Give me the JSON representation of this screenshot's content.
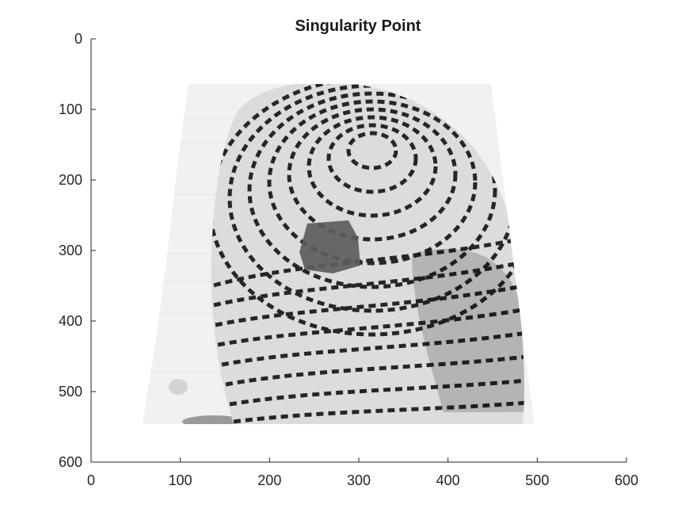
{
  "title": "Singularity Point",
  "axes": {
    "x_ticks": [
      "0",
      "100",
      "200",
      "300",
      "400",
      "500",
      "600"
    ],
    "y_ticks": [
      "0",
      "100",
      "200",
      "300",
      "400",
      "500",
      "600"
    ],
    "xlim": [
      0,
      600
    ],
    "ylim": [
      0,
      600
    ],
    "y_reversed": true,
    "grid": false
  },
  "image": {
    "content": "fingerprint",
    "colormap": "grayscale",
    "singularity_marker": {
      "x": 265,
      "y": 303,
      "note": "dark square patch marking the detected core point"
    }
  }
}
